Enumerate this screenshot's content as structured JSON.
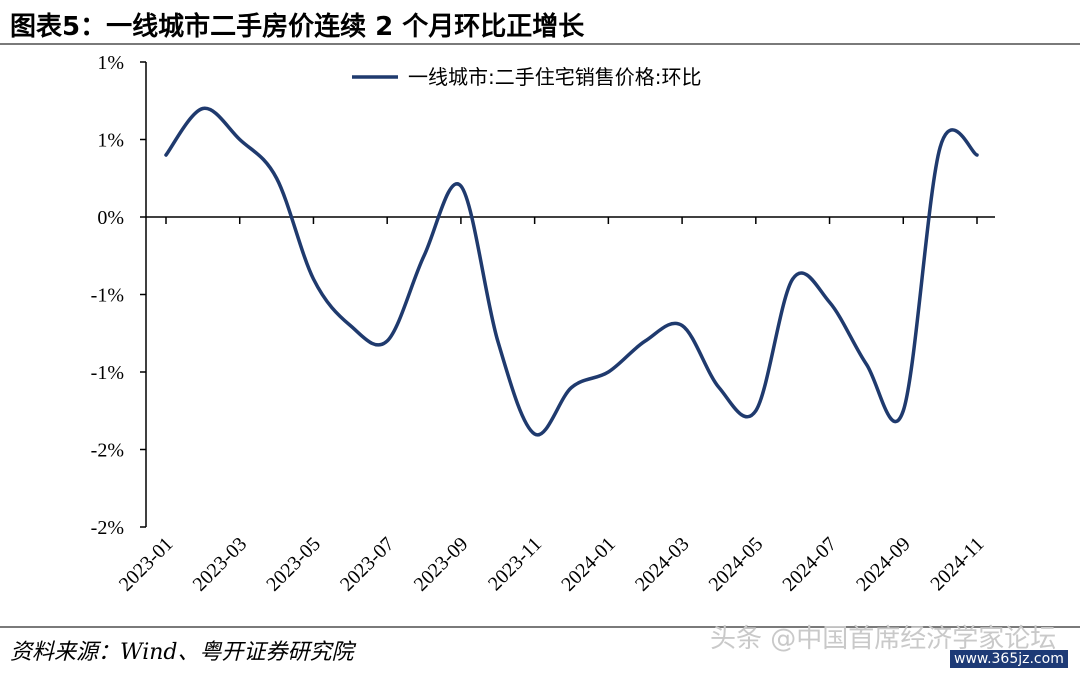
{
  "header": {
    "title": "图表5：一线城市二手房价连续 2 个月环比正增长"
  },
  "footer": {
    "source": "资料来源：Wind、粤开证券研究院",
    "watermark": "头条 @中国首席经济学家论坛",
    "watermark_url": "www.365jz.com"
  },
  "chart_data": {
    "type": "line",
    "title": "",
    "xlabel": "",
    "ylabel": "",
    "y_tick_labels": [
      "1%",
      "1%",
      "0%",
      "-1%",
      "-1%",
      "-2%",
      "-2%"
    ],
    "y_tick_values": [
      1.0,
      0.5,
      0.0,
      -0.5,
      -1.0,
      -1.5,
      -2.0
    ],
    "ylim": [
      -2.0,
      1.0
    ],
    "x_tick_labels": [
      "2023-01",
      "2023-03",
      "2023-05",
      "2023-07",
      "2023-09",
      "2023-11",
      "2024-01",
      "2024-03",
      "2024-05",
      "2024-07",
      "2024-09",
      "2024-11"
    ],
    "legend_position": "top-right",
    "grid": false,
    "line_color": "#1f3a6e",
    "series": [
      {
        "name": "一线城市:二手住宅销售价格:环比",
        "x": [
          "2023-01",
          "2023-02",
          "2023-03",
          "2023-04",
          "2023-05",
          "2023-06",
          "2023-07",
          "2023-08",
          "2023-09",
          "2023-10",
          "2023-11",
          "2023-12",
          "2024-01",
          "2024-02",
          "2024-03",
          "2024-04",
          "2024-05",
          "2024-06",
          "2024-07",
          "2024-08",
          "2024-09",
          "2024-10",
          "2024-11"
        ],
        "values": [
          0.4,
          0.7,
          0.5,
          0.25,
          -0.4,
          -0.7,
          -0.8,
          -0.25,
          0.2,
          -0.8,
          -1.4,
          -1.1,
          -1.0,
          -0.8,
          -0.7,
          -1.1,
          -1.25,
          -0.4,
          -0.55,
          -0.95,
          -1.25,
          0.45,
          0.4
        ]
      }
    ]
  }
}
